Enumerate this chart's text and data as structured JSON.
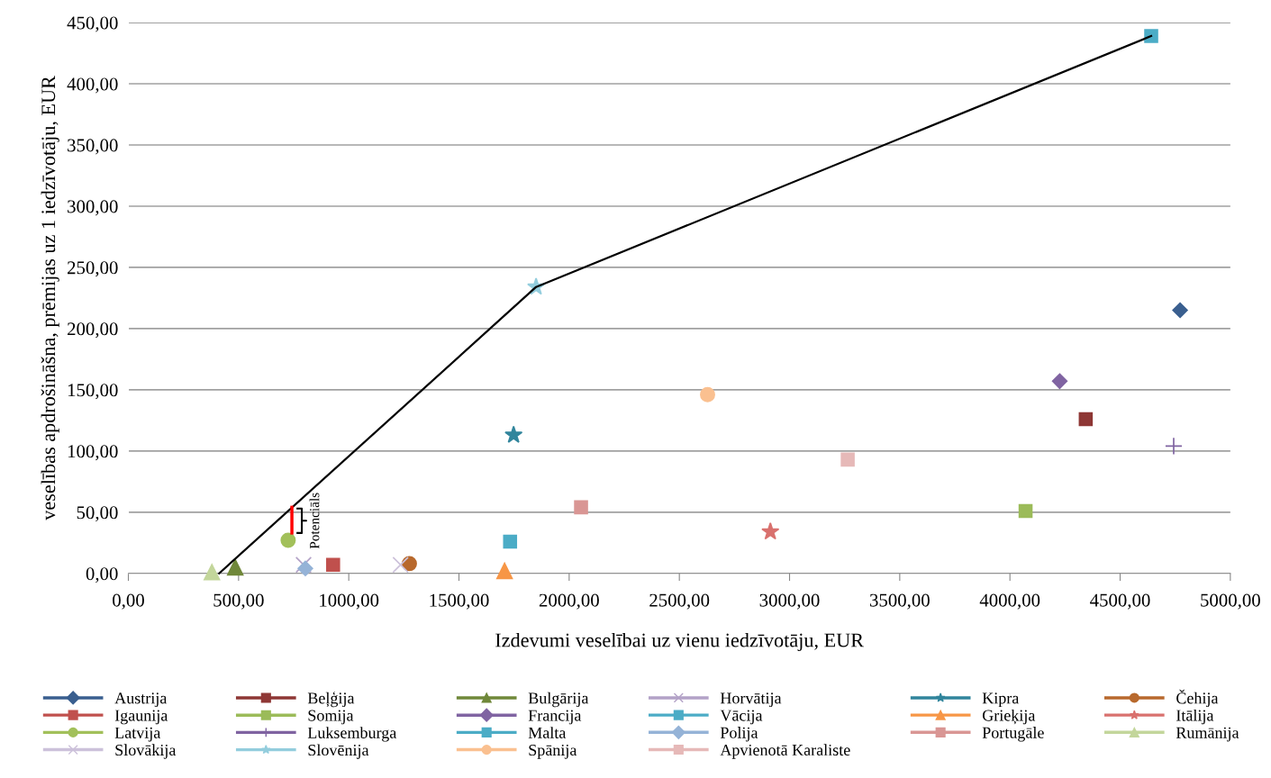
{
  "chart_data": {
    "type": "scatter",
    "xlabel": "Izdevumi veselībai uz vienu iedzīvotāju, EUR",
    "ylabel": "veselības apdrošināšna, prēmijas uz 1 iedzīvotāju, EUR",
    "xlim": [
      0,
      5000
    ],
    "ylim": [
      0,
      450
    ],
    "xticks": [
      {
        "value": 0,
        "label": "0,00"
      },
      {
        "value": 500,
        "label": "500,00"
      },
      {
        "value": 1000,
        "label": "1000,00"
      },
      {
        "value": 1500,
        "label": "1500,00"
      },
      {
        "value": 2000,
        "label": "2000,00"
      },
      {
        "value": 2500,
        "label": "2500,00"
      },
      {
        "value": 3000,
        "label": "3000,00"
      },
      {
        "value": 3500,
        "label": "3500,00"
      },
      {
        "value": 4000,
        "label": "4000,00"
      },
      {
        "value": 4500,
        "label": "4500,00"
      },
      {
        "value": 5000,
        "label": "5000,00"
      }
    ],
    "yticks": [
      {
        "value": 0,
        "label": "0,00"
      },
      {
        "value": 50,
        "label": "50,00"
      },
      {
        "value": 100,
        "label": "100,00"
      },
      {
        "value": 150,
        "label": "150,00"
      },
      {
        "value": 200,
        "label": "200,00"
      },
      {
        "value": 250,
        "label": "250,00"
      },
      {
        "value": 300,
        "label": "300,00"
      },
      {
        "value": 350,
        "label": "350,00"
      },
      {
        "value": 400,
        "label": "400,00"
      },
      {
        "value": 450,
        "label": "450,00"
      }
    ],
    "grid": "y",
    "legend": "bottom",
    "annotations": [
      {
        "text": "Potenciāls",
        "x": 742,
        "y": 43
      }
    ],
    "series": [
      {
        "name": "Austrija",
        "color": "#3a5f8f",
        "marker": "diamond",
        "x": [
          4772
        ],
        "values": [
          215
        ]
      },
      {
        "name": "Beļģija",
        "color": "#8e3735",
        "marker": "square",
        "x": [
          4344
        ],
        "values": [
          126
        ]
      },
      {
        "name": "Bulgārija",
        "color": "#70883a",
        "marker": "triangle",
        "x": [
          485
        ],
        "values": [
          5
        ]
      },
      {
        "name": "Horvātija",
        "color": "#b3a2c7",
        "marker": "cross",
        "x": [
          795
        ],
        "values": [
          7
        ]
      },
      {
        "name": "Kipra",
        "color": "#31859c",
        "marker": "star",
        "x": [
          1748
        ],
        "values": [
          113
        ]
      },
      {
        "name": "Čehija",
        "color": "#b8692d",
        "marker": "circle",
        "x": [
          1275
        ],
        "values": [
          8
        ]
      },
      {
        "name": "Igaunija",
        "color": "#c0504d",
        "marker": "square",
        "x": [
          929
        ],
        "values": [
          7
        ]
      },
      {
        "name": "Somija",
        "color": "#9bbb59",
        "marker": "square",
        "x": [
          4071
        ],
        "values": [
          51
        ]
      },
      {
        "name": "Francija",
        "color": "#8064a2",
        "marker": "diamond",
        "x": [
          4226
        ],
        "values": [
          157
        ]
      },
      {
        "name": "Vācija",
        "color": "#4bacc6",
        "marker": "square",
        "x": [
          4641
        ],
        "values": [
          439
        ]
      },
      {
        "name": "Grieķija",
        "color": "#f79646",
        "marker": "triangle",
        "x": [
          1707
        ],
        "values": [
          2
        ]
      },
      {
        "name": "Itālija",
        "color": "#d9716e",
        "marker": "star",
        "x": [
          2913
        ],
        "values": [
          34
        ]
      },
      {
        "name": "Latvija",
        "color": "#a2c05a",
        "marker": "circle",
        "x": [
          725
        ],
        "values": [
          27
        ]
      },
      {
        "name": "Luksemburga",
        "color": "#7f63a1",
        "marker": "plus",
        "x": [
          4743
        ],
        "values": [
          104
        ]
      },
      {
        "name": "Malta",
        "color": "#4bacc6",
        "marker": "square",
        "x": [
          1732
        ],
        "values": [
          26
        ]
      },
      {
        "name": "Polija",
        "color": "#95b3d7",
        "marker": "diamond",
        "x": [
          803
        ],
        "values": [
          4
        ]
      },
      {
        "name": "Portugāle",
        "color": "#d99694",
        "marker": "square",
        "x": [
          2054
        ],
        "values": [
          54
        ]
      },
      {
        "name": "Rumānija",
        "color": "#c3d69b",
        "marker": "triangle",
        "x": [
          379
        ],
        "values": [
          1
        ]
      },
      {
        "name": "Slovākija",
        "color": "#ccc1da",
        "marker": "cross",
        "x": [
          1235
        ],
        "values": [
          7
        ]
      },
      {
        "name": "Slovēnija",
        "color": "#93cddd",
        "marker": "star",
        "x": [
          1850
        ],
        "values": [
          234
        ]
      },
      {
        "name": "Spānija",
        "color": "#fac090",
        "marker": "circle",
        "x": [
          2628
        ],
        "values": [
          146
        ]
      },
      {
        "name": "Apvienotā Karaliste",
        "color": "#e6b9b8",
        "marker": "square",
        "x": [
          3264
        ],
        "values": [
          93
        ]
      },
      {
        "type": "line",
        "color": "#000000",
        "marker": "none",
        "x": [
          412,
          1850,
          4641
        ],
        "values": [
          0,
          234,
          439
        ]
      },
      {
        "type": "line",
        "color": "#ff0000",
        "marker": "none",
        "x": [
          742,
          742
        ],
        "values": [
          33,
          54
        ]
      }
    ]
  }
}
